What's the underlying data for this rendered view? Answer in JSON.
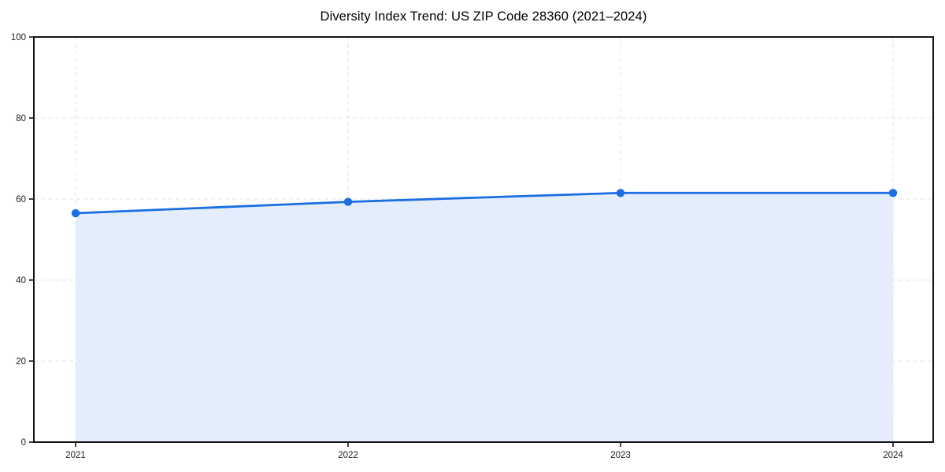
{
  "page": {
    "background": "#ffffff"
  },
  "chart_data": {
    "type": "line",
    "title": "Diversity Index Trend: US ZIP Code 28360 (2021–2024)",
    "categories": [
      "2021",
      "2022",
      "2023",
      "2024"
    ],
    "series": [
      {
        "name": "Diversity Index",
        "values": [
          56.5,
          59.3,
          61.5,
          61.5
        ]
      }
    ],
    "xlabel": "",
    "ylabel": "",
    "ylim": [
      0,
      100
    ],
    "yticks": [
      0,
      20,
      40,
      60,
      80,
      100
    ],
    "grid": true,
    "grid_style": "dashed",
    "legend": "none",
    "area_fill": true,
    "marker": "circle",
    "colors": {
      "line": "#1b6ee3",
      "marker": "#1b6ee3",
      "area_fill": "#e4edfb",
      "grid": "#e3e3e3",
      "spine": "#141414",
      "title_text": "#000000",
      "tick_label": "#1c1c1c"
    }
  }
}
